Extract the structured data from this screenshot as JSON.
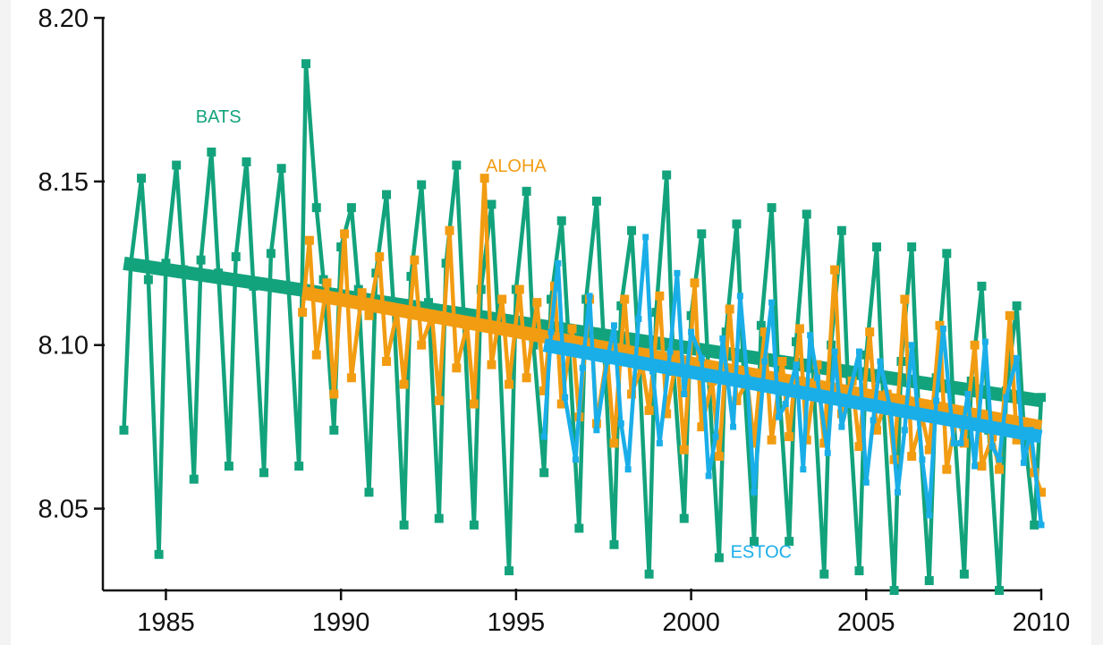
{
  "chart_data": {
    "type": "line",
    "title": "",
    "xlabel": "",
    "ylabel": "",
    "xlim": [
      1983.2,
      2010
    ],
    "ylim": [
      8.025,
      8.2
    ],
    "x_ticks": [
      1985,
      1990,
      1995,
      2000,
      2005,
      2010
    ],
    "x_tick_labels": [
      "1985",
      "1990",
      "1995",
      "2000",
      "2005",
      "2010"
    ],
    "y_ticks": [
      8.05,
      8.1,
      8.15,
      8.2
    ],
    "y_tick_labels": [
      "8.05",
      "8.10",
      "8.15",
      "8.20"
    ],
    "grid": false,
    "legend": "none",
    "annotations": [
      {
        "text": "BATS",
        "series": "BATS",
        "x": 1986.5,
        "y": 8.168
      },
      {
        "text": "ALOHA",
        "series": "ALOHA",
        "x": 1995.0,
        "y": 8.153
      },
      {
        "text": "ESTOC",
        "series": "ESTOC",
        "x": 2002.0,
        "y": 8.035
      }
    ],
    "series": [
      {
        "name": "BATS",
        "color": "#13a37c",
        "x": [
          1983.8,
          1984.0,
          1984.3,
          1984.5,
          1984.8,
          1985.0,
          1985.3,
          1985.5,
          1985.8,
          1986.0,
          1986.3,
          1986.5,
          1986.8,
          1987.0,
          1987.3,
          1987.5,
          1987.8,
          1988.0,
          1988.3,
          1988.5,
          1988.8,
          1989.0,
          1989.3,
          1989.5,
          1989.8,
          1990.0,
          1990.3,
          1990.5,
          1990.8,
          1991.0,
          1991.3,
          1991.5,
          1991.8,
          1992.0,
          1992.3,
          1992.5,
          1992.8,
          1993.0,
          1993.3,
          1993.5,
          1993.8,
          1994.0,
          1994.3,
          1994.5,
          1994.8,
          1995.0,
          1995.3,
          1995.5,
          1995.8,
          1996.0,
          1996.3,
          1996.5,
          1996.8,
          1997.0,
          1997.3,
          1997.5,
          1997.8,
          1998.0,
          1998.3,
          1998.5,
          1998.8,
          1999.0,
          1999.3,
          1999.5,
          1999.8,
          2000.0,
          2000.3,
          2000.5,
          2000.8,
          2001.0,
          2001.3,
          2001.5,
          2001.8,
          2002.0,
          2002.3,
          2002.5,
          2002.8,
          2003.0,
          2003.3,
          2003.5,
          2003.8,
          2004.0,
          2004.3,
          2004.5,
          2004.8,
          2005.0,
          2005.3,
          2005.5,
          2005.8,
          2006.0,
          2006.3,
          2006.5,
          2006.8,
          2007.0,
          2007.3,
          2007.5,
          2007.8,
          2008.0,
          2008.3,
          2008.5,
          2008.8,
          2009.0,
          2009.3,
          2009.5,
          2009.8,
          2010.0
        ],
        "y": [
          8.074,
          8.125,
          8.151,
          8.12,
          8.036,
          8.125,
          8.155,
          8.123,
          8.059,
          8.126,
          8.159,
          8.122,
          8.063,
          8.127,
          8.156,
          8.118,
          8.061,
          8.128,
          8.154,
          8.118,
          8.063,
          8.186,
          8.142,
          8.12,
          8.074,
          8.13,
          8.142,
          8.117,
          8.055,
          8.122,
          8.146,
          8.112,
          8.045,
          8.121,
          8.149,
          8.113,
          8.047,
          8.125,
          8.155,
          8.11,
          8.045,
          8.117,
          8.143,
          8.106,
          8.031,
          8.117,
          8.147,
          8.1,
          8.061,
          8.114,
          8.138,
          8.102,
          8.044,
          8.114,
          8.144,
          8.102,
          8.039,
          8.112,
          8.135,
          8.098,
          8.03,
          8.11,
          8.152,
          8.092,
          8.047,
          8.109,
          8.134,
          8.09,
          8.035,
          8.104,
          8.137,
          8.092,
          8.04,
          8.106,
          8.142,
          8.089,
          8.04,
          8.101,
          8.14,
          8.087,
          8.03,
          8.1,
          8.135,
          8.083,
          8.031,
          8.097,
          8.13,
          8.08,
          8.025,
          8.095,
          8.13,
          8.079,
          8.028,
          8.09,
          8.128,
          8.078,
          8.03,
          8.089,
          8.118,
          8.074,
          8.025,
          8.086,
          8.112,
          8.075,
          8.045,
          8.084
        ],
        "trend": {
          "x": [
            1983.8,
            2010
          ],
          "y": [
            8.125,
            8.083
          ]
        }
      },
      {
        "name": "ALOHA",
        "color": "#f29c12",
        "x": [
          1988.9,
          1989.1,
          1989.3,
          1989.6,
          1989.8,
          1990.1,
          1990.3,
          1990.6,
          1990.8,
          1991.1,
          1991.3,
          1991.6,
          1991.8,
          1992.1,
          1992.3,
          1992.6,
          1992.8,
          1993.1,
          1993.3,
          1993.6,
          1993.8,
          1994.1,
          1994.3,
          1994.6,
          1994.8,
          1995.1,
          1995.3,
          1995.6,
          1995.8,
          1996.1,
          1996.3,
          1996.6,
          1996.8,
          1997.1,
          1997.3,
          1997.6,
          1997.8,
          1998.1,
          1998.3,
          1998.6,
          1998.8,
          1999.1,
          1999.3,
          1999.6,
          1999.8,
          2000.1,
          2000.3,
          2000.6,
          2000.8,
          2001.1,
          2001.3,
          2001.6,
          2001.8,
          2002.1,
          2002.3,
          2002.6,
          2002.8,
          2003.1,
          2003.3,
          2003.6,
          2003.8,
          2004.1,
          2004.3,
          2004.6,
          2004.8,
          2005.1,
          2005.3,
          2005.6,
          2005.8,
          2006.1,
          2006.3,
          2006.6,
          2006.8,
          2007.1,
          2007.3,
          2007.6,
          2007.8,
          2008.1,
          2008.3,
          2008.6,
          2008.8,
          2009.1,
          2009.3,
          2009.6,
          2009.8,
          2010.0
        ],
        "y": [
          8.11,
          8.132,
          8.097,
          8.119,
          8.085,
          8.134,
          8.09,
          8.116,
          8.109,
          8.127,
          8.095,
          8.11,
          8.088,
          8.126,
          8.1,
          8.109,
          8.083,
          8.135,
          8.093,
          8.106,
          8.082,
          8.151,
          8.094,
          8.114,
          8.088,
          8.117,
          8.09,
          8.113,
          8.086,
          8.118,
          8.082,
          8.105,
          8.078,
          8.114,
          8.076,
          8.097,
          8.07,
          8.114,
          8.085,
          8.094,
          8.08,
          8.115,
          8.079,
          8.097,
          8.068,
          8.119,
          8.075,
          8.089,
          8.066,
          8.111,
          8.083,
          8.089,
          8.07,
          8.104,
          8.071,
          8.095,
          8.072,
          8.105,
          8.071,
          8.094,
          8.07,
          8.123,
          8.079,
          8.089,
          8.069,
          8.104,
          8.074,
          8.085,
          8.065,
          8.114,
          8.066,
          8.078,
          8.068,
          8.106,
          8.062,
          8.08,
          8.07,
          8.1,
          8.063,
          8.072,
          8.062,
          8.109,
          8.071,
          8.075,
          8.061,
          8.055
        ],
        "trend": {
          "x": [
            1988.9,
            2010
          ],
          "y": [
            8.116,
            8.075
          ]
        }
      },
      {
        "name": "ESTOC",
        "color": "#1aaee8",
        "x": [
          1995.8,
          1996.0,
          1996.2,
          1996.4,
          1996.7,
          1996.9,
          1997.1,
          1997.3,
          1997.6,
          1997.8,
          1998.0,
          1998.2,
          1998.5,
          1998.7,
          1998.9,
          1999.1,
          1999.4,
          1999.6,
          1999.8,
          2000.0,
          2000.3,
          2000.5,
          2000.7,
          2000.9,
          2001.2,
          2001.4,
          2001.6,
          2001.8,
          2002.1,
          2002.3,
          2002.5,
          2002.7,
          2003.0,
          2003.2,
          2003.4,
          2003.6,
          2003.9,
          2004.1,
          2004.3,
          2004.5,
          2004.8,
          2005.0,
          2005.2,
          2005.4,
          2005.7,
          2005.9,
          2006.1,
          2006.3,
          2006.6,
          2006.8,
          2007.0,
          2007.2,
          2007.5,
          2007.7,
          2007.9,
          2008.1,
          2008.4,
          2008.6,
          2008.8,
          2009.0,
          2009.3,
          2009.5,
          2009.7,
          2010.0
        ],
        "y": [
          8.072,
          8.104,
          8.125,
          8.084,
          8.065,
          8.093,
          8.115,
          8.074,
          8.095,
          8.106,
          8.076,
          8.062,
          8.108,
          8.133,
          8.092,
          8.07,
          8.098,
          8.122,
          8.085,
          8.104,
          8.096,
          8.06,
          8.072,
          8.102,
          8.075,
          8.115,
          8.09,
          8.055,
          8.095,
          8.113,
          8.078,
          8.082,
          8.094,
          8.062,
          8.103,
          8.09,
          8.067,
          8.098,
          8.075,
          8.084,
          8.098,
          8.058,
          8.077,
          8.095,
          8.08,
          8.055,
          8.074,
          8.1,
          8.065,
          8.048,
          8.083,
          8.105,
          8.07,
          8.07,
          8.085,
          8.063,
          8.101,
          8.069,
          8.065,
          8.084,
          8.096,
          8.064,
          8.074,
          8.045
        ],
        "trend": {
          "x": [
            1995.8,
            2010
          ],
          "y": [
            8.1,
            8.072
          ]
        }
      }
    ]
  }
}
